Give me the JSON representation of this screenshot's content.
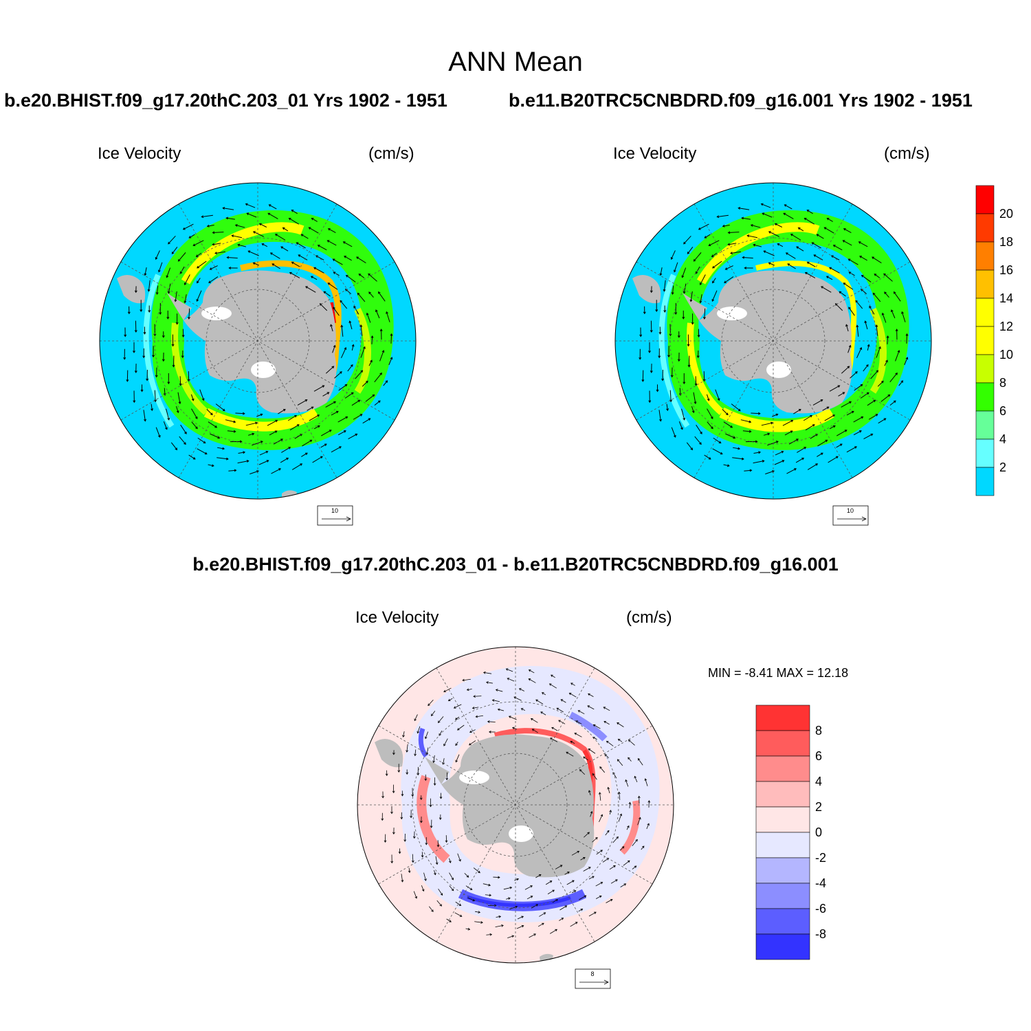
{
  "main_title": "ANN Mean",
  "panels": [
    {
      "case": "b.e20.BHIST.f09_g17.20thC.203_01  Yrs 1902 - 1951",
      "variable": "Ice Velocity",
      "units": "(cm/s)",
      "ref_vector": "10"
    },
    {
      "case": "b.e11.B20TRC5CNBDRD.f09_g16.001  Yrs 1902 - 1951",
      "variable": "Ice Velocity",
      "units": "(cm/s)",
      "ref_vector": "10"
    }
  ],
  "diff_panel": {
    "title": "b.e20.BHIST.f09_g17.20thC.203_01 - b.e11.B20TRC5CNBDRD.f09_g16.001",
    "variable": "Ice Velocity",
    "units": "(cm/s)",
    "stats": "MIN =  -8.41 MAX =  12.18",
    "ref_vector": "8"
  },
  "colorbar_main": {
    "labels": [
      "20",
      "18",
      "16",
      "14",
      "12",
      "10",
      "8",
      "6",
      "4",
      "2"
    ],
    "colors": [
      "#ff0000",
      "#ff3a00",
      "#ff7f00",
      "#ffc000",
      "#ffff00",
      "#ffff00",
      "#c8ff00",
      "#33ff00",
      "#66ff99",
      "#66ffff",
      "#00d8ff"
    ]
  },
  "colorbar_diff": {
    "labels": [
      "8",
      "6",
      "4",
      "2",
      "0",
      "-2",
      "-4",
      "-6",
      "-8"
    ],
    "colors": [
      "#ff3333",
      "#ff5c5c",
      "#ff8c8c",
      "#ffbcbc",
      "#ffe6e6",
      "#e6e8ff",
      "#b4b6ff",
      "#8c8eff",
      "#5c5eff",
      "#3333ff"
    ]
  }
}
